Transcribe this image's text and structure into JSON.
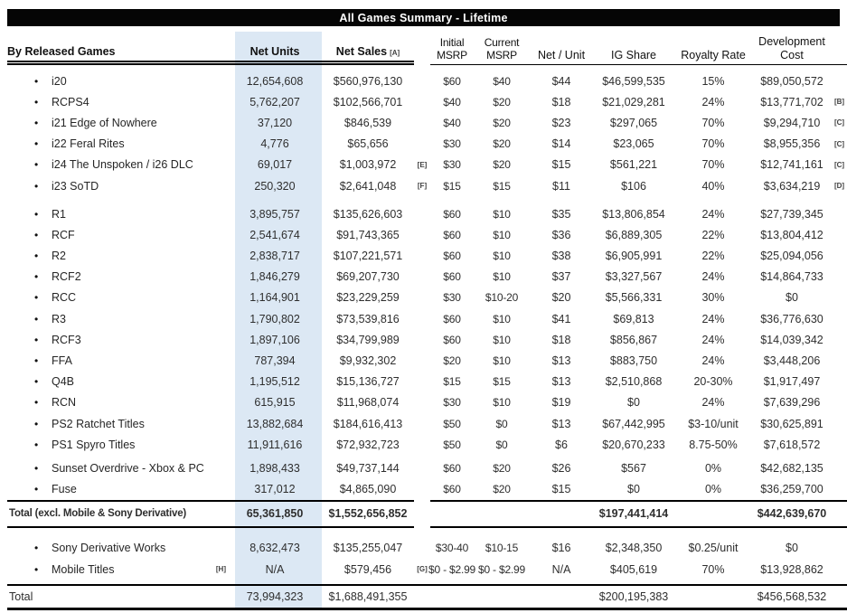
{
  "title": "All Games Summary - Lifetime",
  "colors": {
    "highlight_column": "#dce8f4",
    "title_bg": "#050505",
    "title_fg": "#ffffff"
  },
  "columns": {
    "games": "By Released Games",
    "units": "Net Units",
    "sales": "Net Sales",
    "sales_fn": "[A]",
    "initial_msrp": "Initial\nMSRP",
    "current_msrp": "Current\nMSRP",
    "net_unit": "Net / Unit",
    "ig_share": "IG Share",
    "royalty": "Royalty Rate",
    "dev_cost": "Development\nCost"
  },
  "sections": [
    {
      "rows": [
        {
          "name": "i20",
          "units": "12,654,608",
          "sales": "$560,976,130",
          "imsrp": "$60",
          "cmsrp": "$40",
          "net": "$44",
          "ig": "$46,599,535",
          "roy": "15%",
          "dev": "$89,050,572"
        },
        {
          "name": "RCPS4",
          "units": "5,762,207",
          "sales": "$102,566,701",
          "imsrp": "$40",
          "cmsrp": "$20",
          "net": "$18",
          "ig": "$21,029,281",
          "roy": "24%",
          "dev": "$13,771,702",
          "fn2": "[B]"
        },
        {
          "name": "i21 Edge of Nowhere",
          "units": "37,120",
          "sales": "$846,539",
          "imsrp": "$40",
          "cmsrp": "$20",
          "net": "$23",
          "ig": "$297,065",
          "roy": "70%",
          "dev": "$9,294,710",
          "fn2": "[C]"
        },
        {
          "name": "i22 Feral Rites",
          "units": "4,776",
          "sales": "$65,656",
          "imsrp": "$30",
          "cmsrp": "$20",
          "net": "$14",
          "ig": "$23,065",
          "roy": "70%",
          "dev": "$8,955,356",
          "fn2": "[C]"
        },
        {
          "name": "i24 The Unspoken / i26 DLC",
          "units": "69,017",
          "sales": "$1,003,972",
          "fn1": "[E]",
          "imsrp": "$30",
          "cmsrp": "$20",
          "net": "$15",
          "ig": "$561,221",
          "roy": "70%",
          "dev": "$12,741,161",
          "fn2": "[C]"
        },
        {
          "name": "i23 SoTD",
          "units": "250,320",
          "sales": "$2,641,048",
          "fn1": "[F]",
          "imsrp": "$15",
          "cmsrp": "$15",
          "net": "$11",
          "ig": "$106",
          "roy": "40%",
          "dev": "$3,634,219",
          "fn2": "[D]"
        }
      ]
    },
    {
      "rows": [
        {
          "name": "R1",
          "units": "3,895,757",
          "sales": "$135,626,603",
          "imsrp": "$60",
          "cmsrp": "$10",
          "net": "$35",
          "ig": "$13,806,854",
          "roy": "24%",
          "dev": "$27,739,345"
        },
        {
          "name": "RCF",
          "units": "2,541,674",
          "sales": "$91,743,365",
          "imsrp": "$60",
          "cmsrp": "$10",
          "net": "$36",
          "ig": "$6,889,305",
          "roy": "22%",
          "dev": "$13,804,412"
        },
        {
          "name": "R2",
          "units": "2,838,717",
          "sales": "$107,221,571",
          "imsrp": "$60",
          "cmsrp": "$10",
          "net": "$38",
          "ig": "$6,905,991",
          "roy": "22%",
          "dev": "$25,094,056"
        },
        {
          "name": "RCF2",
          "units": "1,846,279",
          "sales": "$69,207,730",
          "imsrp": "$60",
          "cmsrp": "$10",
          "net": "$37",
          "ig": "$3,327,567",
          "roy": "24%",
          "dev": "$14,864,733"
        },
        {
          "name": "RCC",
          "units": "1,164,901",
          "sales": "$23,229,259",
          "imsrp": "$30",
          "cmsrp": "$10-20",
          "net": "$20",
          "ig": "$5,566,331",
          "roy": "30%",
          "dev": "$0"
        },
        {
          "name": "R3",
          "units": "1,790,802",
          "sales": "$73,539,816",
          "imsrp": "$60",
          "cmsrp": "$10",
          "net": "$41",
          "ig": "$69,813",
          "roy": "24%",
          "dev": "$36,776,630"
        },
        {
          "name": "RCF3",
          "units": "1,897,106",
          "sales": "$34,799,989",
          "imsrp": "$60",
          "cmsrp": "$10",
          "net": "$18",
          "ig": "$856,867",
          "roy": "24%",
          "dev": "$14,039,342"
        },
        {
          "name": "FFA",
          "units": "787,394",
          "sales": "$9,932,302",
          "imsrp": "$20",
          "cmsrp": "$10",
          "net": "$13",
          "ig": "$883,750",
          "roy": "24%",
          "dev": "$3,448,206"
        },
        {
          "name": "Q4B",
          "units": "1,195,512",
          "sales": "$15,136,727",
          "imsrp": "$15",
          "cmsrp": "$15",
          "net": "$13",
          "ig": "$2,510,868",
          "roy": "20-30%",
          "dev": "$1,917,497"
        },
        {
          "name": "RCN",
          "units": "615,915",
          "sales": "$11,968,074",
          "imsrp": "$30",
          "cmsrp": "$10",
          "net": "$19",
          "ig": "$0",
          "roy": "24%",
          "dev": "$7,639,296"
        },
        {
          "name": "PS2 Ratchet Titles",
          "units": "13,882,684",
          "sales": "$184,616,413",
          "imsrp": "$50",
          "cmsrp": "$0",
          "net": "$13",
          "ig": "$67,442,995",
          "roy": "$3-10/unit",
          "dev": "$30,625,891"
        },
        {
          "name": "PS1 Spyro Titles",
          "units": "11,911,616",
          "sales": "$72,932,723",
          "imsrp": "$50",
          "cmsrp": "$0",
          "net": "$6",
          "ig": "$20,670,233",
          "roy": "8.75-50%",
          "dev": "$7,618,572"
        }
      ]
    },
    {
      "rows": [
        {
          "name": "Sunset Overdrive - Xbox & PC",
          "units": "1,898,433",
          "sales": "$49,737,144",
          "imsrp": "$60",
          "cmsrp": "$20",
          "net": "$26",
          "ig": "$567",
          "roy": "0%",
          "dev": "$42,682,135"
        },
        {
          "name": "Fuse",
          "units": "317,012",
          "sales": "$4,865,090",
          "imsrp": "$60",
          "cmsrp": "$20",
          "net": "$15",
          "ig": "$0",
          "roy": "0%",
          "dev": "$36,259,700"
        }
      ]
    },
    {
      "rows": [
        {
          "name": "Sony Derivative Works",
          "units": "8,632,473",
          "sales": "$135,255,047",
          "imsrp": "$30-40",
          "cmsrp": "$10-15",
          "net": "$16",
          "ig": "$2,348,350",
          "roy": "$0.25/unit",
          "dev": "$0"
        },
        {
          "name": "Mobile Titles",
          "name_fn": "[H]",
          "units": "N/A",
          "sales": "$579,456",
          "fn1": "[G]",
          "imsrp": "$0 - $2.99",
          "cmsrp": "$0 - $2.99",
          "net": "N/A",
          "ig": "$405,619",
          "roy": "70%",
          "dev": "$13,928,862"
        }
      ]
    }
  ],
  "totals": [
    {
      "label": "Total (excl. Mobile & Sony Derivative)",
      "units": "65,361,850",
      "sales": "$1,552,656,852",
      "ig_share": "$197,441,414",
      "dev_cost": "$442,639,670"
    },
    {
      "label": "Total",
      "units": "73,994,323",
      "sales": "$1,688,491,355",
      "ig_share": "$200,195,383",
      "dev_cost": "$456,568,532"
    }
  ]
}
